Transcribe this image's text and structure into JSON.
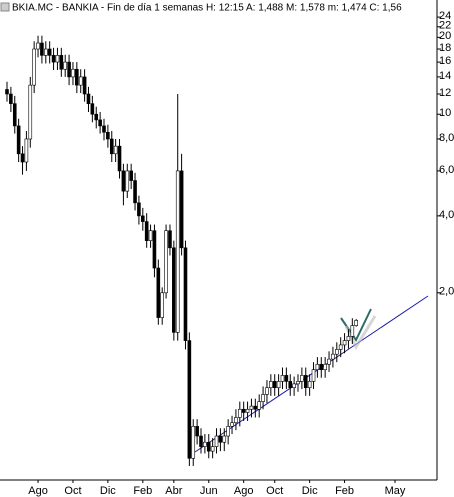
{
  "chart_data": {
    "type": "candlestick",
    "title": "BKIA.MC - BANKIA - Fin de día 1 semanas H: 12:15 A: 1,488 M: 1,578 m: 1,474 C: 1,56",
    "log_scale": true,
    "ylim": [
      0.37,
      28
    ],
    "yticks": [
      24,
      22,
      20,
      18,
      16,
      14,
      12,
      10,
      {
        "value": 8,
        "label": "8,0"
      },
      {
        "value": 6,
        "label": "6,0"
      },
      {
        "value": 4,
        "label": "4,0"
      },
      {
        "value": 2,
        "label": "2,0"
      }
    ],
    "up_color": "#ffffff",
    "down_color": "#000000",
    "edge_color": "#000000",
    "categories": [
      null,
      null,
      null,
      null,
      null,
      null,
      null,
      null,
      "Ago",
      null,
      null,
      null,
      null,
      null,
      null,
      null,
      null,
      "Oct",
      null,
      null,
      null,
      null,
      null,
      null,
      null,
      null,
      "Dic",
      null,
      null,
      null,
      null,
      null,
      null,
      null,
      null,
      "Feb",
      null,
      null,
      null,
      null,
      null,
      null,
      null,
      "Abr",
      null,
      null,
      null,
      null,
      null,
      null,
      null,
      null,
      "Jun",
      null,
      null,
      null,
      null,
      null,
      null,
      null,
      null,
      "Ago",
      null,
      null,
      null,
      null,
      null,
      null,
      null,
      "Oct",
      null,
      null,
      null,
      null,
      null,
      null,
      null,
      null,
      "Dic",
      null,
      null,
      null,
      null,
      null,
      null,
      null,
      null,
      "Feb",
      null,
      null,
      null,
      null,
      null,
      null,
      null,
      null,
      null,
      null,
      null,
      null,
      "May"
    ],
    "open": [
      12.5,
      12,
      11,
      9,
      7,
      6.5,
      8,
      13,
      18,
      19,
      17,
      18,
      17,
      16,
      17,
      15,
      16,
      14,
      15,
      13,
      14,
      12,
      11,
      10,
      9.5,
      9,
      8.5,
      8,
      7,
      7.5,
      6,
      5,
      6,
      5.5,
      4.5,
      4,
      3.8,
      3.2,
      3.5,
      2.5,
      1.6,
      2.0,
      3.5,
      3.0,
      1.4,
      6,
      3.0,
      1.3,
      0.45,
      0.6,
      0.55,
      0.5,
      0.52,
      0.48,
      0.5,
      0.55,
      0.52,
      0.55,
      0.6,
      0.62,
      0.65,
      0.7,
      0.68,
      0.7,
      0.72,
      0.7,
      0.75,
      0.8,
      0.85,
      0.9,
      0.85,
      0.9,
      0.95,
      0.9,
      0.85,
      0.88,
      0.9,
      0.95,
      0.85,
      0.9,
      1.0,
      1.05,
      1.0,
      1.05,
      1.1,
      1.15,
      1.2,
      1.25,
      1.3,
      1.35,
      1.488,
      null,
      null,
      null,
      null,
      null,
      null,
      null,
      null,
      null,
      null
    ],
    "high": [
      13.4,
      12.8,
      11.8,
      9.6,
      7.5,
      8.6,
      14,
      19.3,
      20.3,
      20.3,
      19.3,
      19.3,
      18.2,
      18.2,
      18.2,
      17.1,
      17.1,
      16,
      16,
      15,
      15,
      12.8,
      11.8,
      10.7,
      10.2,
      9.6,
      9.1,
      8.6,
      8,
      8,
      6.4,
      6.4,
      6.4,
      5.9,
      4.8,
      4.3,
      4.1,
      3.7,
      3.7,
      2.7,
      2.1,
      3.7,
      3.7,
      3.2,
      12,
      7,
      3.2,
      1.4,
      0.64,
      0.64,
      0.59,
      0.56,
      0.56,
      0.54,
      0.59,
      0.59,
      0.59,
      0.64,
      0.66,
      0.7,
      0.75,
      0.75,
      0.75,
      0.77,
      0.77,
      0.8,
      0.86,
      0.91,
      0.96,
      0.96,
      0.96,
      1.02,
      1.02,
      0.96,
      0.94,
      0.96,
      1.02,
      1.02,
      0.96,
      1.07,
      1.12,
      1.12,
      1.12,
      1.18,
      1.23,
      1.28,
      1.34,
      1.39,
      1.44,
      1.59,
      1.578,
      null,
      null,
      null,
      null,
      null,
      null,
      null,
      null,
      null,
      null
    ],
    "low": [
      11.2,
      10.2,
      8.4,
      6.5,
      5.8,
      6.0,
      7.4,
      12.1,
      16.7,
      15.8,
      15.8,
      15.8,
      14.9,
      14.9,
      14,
      14,
      13,
      13,
      12.1,
      12.1,
      11.2,
      10.2,
      9.3,
      8.8,
      8.4,
      7.9,
      7.4,
      6.5,
      6.5,
      5.6,
      4.4,
      4.7,
      5.1,
      4.2,
      3.7,
      3.5,
      3.0,
      3.0,
      2.3,
      1.5,
      1.5,
      1.9,
      2.8,
      1.3,
      1.3,
      2.8,
      1.2,
      0.42,
      0.42,
      0.51,
      0.47,
      0.47,
      0.45,
      0.45,
      0.47,
      0.48,
      0.48,
      0.51,
      0.56,
      0.58,
      0.6,
      0.63,
      0.63,
      0.65,
      0.65,
      0.65,
      0.7,
      0.74,
      0.79,
      0.79,
      0.79,
      0.84,
      0.84,
      0.79,
      0.79,
      0.82,
      0.84,
      0.79,
      0.79,
      0.84,
      0.93,
      0.93,
      0.93,
      0.98,
      1.02,
      1.07,
      1.12,
      1.16,
      1.21,
      1.26,
      1.474,
      null,
      null,
      null,
      null,
      null,
      null,
      null,
      null,
      null,
      null
    ],
    "close": [
      12,
      11,
      9,
      7,
      6.5,
      8,
      13,
      18,
      19,
      17,
      18,
      17,
      16,
      17,
      15,
      16,
      14,
      15,
      13,
      14,
      12,
      11,
      10,
      9.5,
      9,
      8.5,
      8,
      7,
      7.5,
      6,
      5,
      6,
      5.5,
      4.5,
      4,
      3.8,
      3.2,
      3.5,
      2.5,
      1.6,
      2.0,
      3.5,
      3.0,
      1.4,
      6,
      3.0,
      1.3,
      0.45,
      0.6,
      0.55,
      0.5,
      0.52,
      0.48,
      0.5,
      0.55,
      0.52,
      0.55,
      0.6,
      0.62,
      0.65,
      0.7,
      0.68,
      0.7,
      0.72,
      0.7,
      0.75,
      0.8,
      0.85,
      0.9,
      0.85,
      0.9,
      0.95,
      0.9,
      0.85,
      0.88,
      0.9,
      0.95,
      0.85,
      0.9,
      1.0,
      1.05,
      1.0,
      1.05,
      1.1,
      1.15,
      1.2,
      1.25,
      1.3,
      1.35,
      1.488,
      1.56,
      null,
      null,
      null,
      null,
      null,
      null,
      null,
      null,
      null,
      null
    ]
  }
}
